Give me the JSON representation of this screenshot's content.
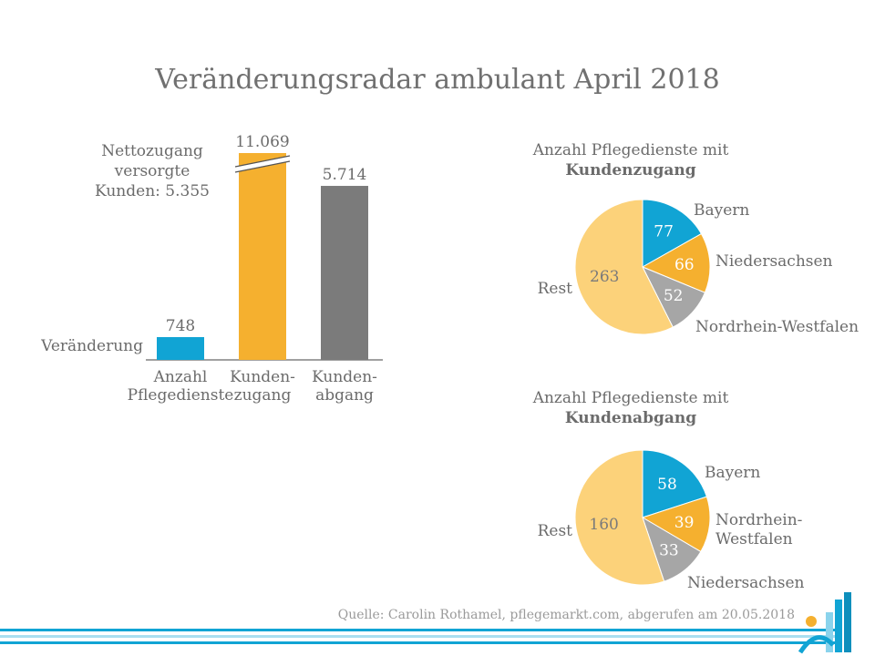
{
  "title": "Veränderungsradar ambulant April 2018",
  "source": "Quelle: Carolin Rothamel, pflegemarkt.com, abgerufen am 20.05.2018",
  "colors": {
    "blue": "#11a4d4",
    "orange": "#f5b02f",
    "gray": "#7b7b7b",
    "lightyellow": "#fcd27a",
    "lightgray": "#a6a6a6"
  },
  "chart_data": [
    {
      "type": "bar",
      "categories": [
        [
          "Anzahl",
          "Pflegedienste"
        ],
        [
          "Kunden-",
          "zugang"
        ],
        [
          "Kunden-",
          "abgang"
        ]
      ],
      "values": [
        748,
        11069,
        5714
      ],
      "value_labels": [
        "748",
        "11.069",
        "5.714"
      ],
      "row_label": "Veränderung",
      "annotation": [
        "Nettozugang",
        "versorgte",
        "Kunden: 5.355"
      ],
      "broken_axis_bar": 1,
      "colors": [
        "#11a4d4",
        "#f5b02f",
        "#7b7b7b"
      ]
    },
    {
      "type": "pie",
      "title": [
        "Anzahl Pflegedienste mit",
        "Kundenzugang"
      ],
      "slices": [
        {
          "label": [
            "Bayern"
          ],
          "value": 77,
          "color": "#11a4d4",
          "text_color": "#ffffff"
        },
        {
          "label": [
            "Niedersachsen"
          ],
          "value": 66,
          "color": "#f5b02f",
          "text_color": "#ffffff"
        },
        {
          "label": [
            "Nordrhein-Westfalen"
          ],
          "value": 52,
          "color": "#a6a6a6",
          "text_color": "#ffffff"
        },
        {
          "label": [
            "Rest"
          ],
          "value": 263,
          "color": "#fcd27a",
          "text_color": "#7a7a7a"
        }
      ]
    },
    {
      "type": "pie",
      "title": [
        "Anzahl Pflegedienste mit",
        "Kundenabgang"
      ],
      "slices": [
        {
          "label": [
            "Bayern"
          ],
          "value": 58,
          "color": "#11a4d4",
          "text_color": "#ffffff"
        },
        {
          "label": [
            "Nordrhein-",
            "Westfalen"
          ],
          "value": 39,
          "color": "#f5b02f",
          "text_color": "#ffffff"
        },
        {
          "label": [
            "Niedersachsen"
          ],
          "value": 33,
          "color": "#a6a6a6",
          "text_color": "#ffffff"
        },
        {
          "label": [
            "Rest"
          ],
          "value": 160,
          "color": "#fcd27a",
          "text_color": "#7a7a7a"
        }
      ]
    }
  ]
}
